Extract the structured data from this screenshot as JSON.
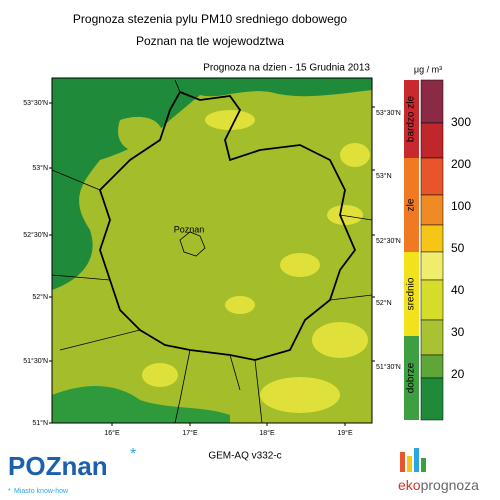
{
  "header": {
    "title": "Prognoza stezenia pylu PM10 sredniego dobowego",
    "subtitle": "Poznan na tle wojewodztwa"
  },
  "map": {
    "date_label": "Prognoza na dzien -  15 Grudnia 2013",
    "city": "Poznan",
    "lat_left": [
      "53°30'N",
      "53°N",
      "52°30'N",
      "52°N",
      "51°30'N",
      "51°N"
    ],
    "lat_right": [
      "53°30'N",
      "53°N",
      "52°30'N",
      "52°N",
      "51°30'N"
    ],
    "lon": [
      "16°E",
      "17°E",
      "18°E",
      "19°E"
    ],
    "model": "GEM-AQ v332-c"
  },
  "legend": {
    "unit": "μg / m³",
    "categories": [
      {
        "label": "bardzo zle",
        "color": "#c8282e"
      },
      {
        "label": "zle",
        "color": "#f07a24"
      },
      {
        "label": "srednio",
        "color": "#f2e21c"
      },
      {
        "label": "dobrze",
        "color": "#3e9f42"
      }
    ],
    "levels": [
      300,
      200,
      100,
      50,
      40,
      30,
      20
    ],
    "colors": [
      "#8a2a45",
      "#c0272d",
      "#e8552a",
      "#f08a24",
      "#f5c518",
      "#f0ed6c",
      "#d5dc2c",
      "#a9c232",
      "#5ea638",
      "#1f8a3a"
    ]
  },
  "logos": {
    "poznan": "POZnan",
    "poznan_tagline": "Miasto know-how",
    "eko": "eko",
    "prognoza": "prognoza"
  }
}
